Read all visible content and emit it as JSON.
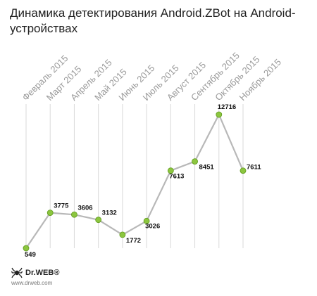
{
  "title": "Динамика детектирования Android.ZBot на Android-устройствах",
  "brand": {
    "name": "Dr.WEB®",
    "url": "www.drweb.com"
  },
  "colors": {
    "line": "#b8b8b8",
    "marker": "#8cc63f",
    "marker_edge": "#5f9a1c",
    "guide": "#d9d9d9",
    "tick_label": "#9a9a9a",
    "value_label": "#111111"
  },
  "chart_data": {
    "type": "line",
    "categories": [
      "Февраль 2015",
      "Март 2015",
      "Апрель 2015",
      "Май 2015",
      "Июнь 2015",
      "Июль 2015",
      "Август 2015",
      "Сентябрь 2015",
      "Октябрь 2015",
      "Ноябрь 2015"
    ],
    "values": [
      549,
      3775,
      3606,
      3132,
      1772,
      3026,
      7613,
      8451,
      12716,
      7611
    ],
    "grid": "vertical guide lines",
    "legend": "none"
  }
}
